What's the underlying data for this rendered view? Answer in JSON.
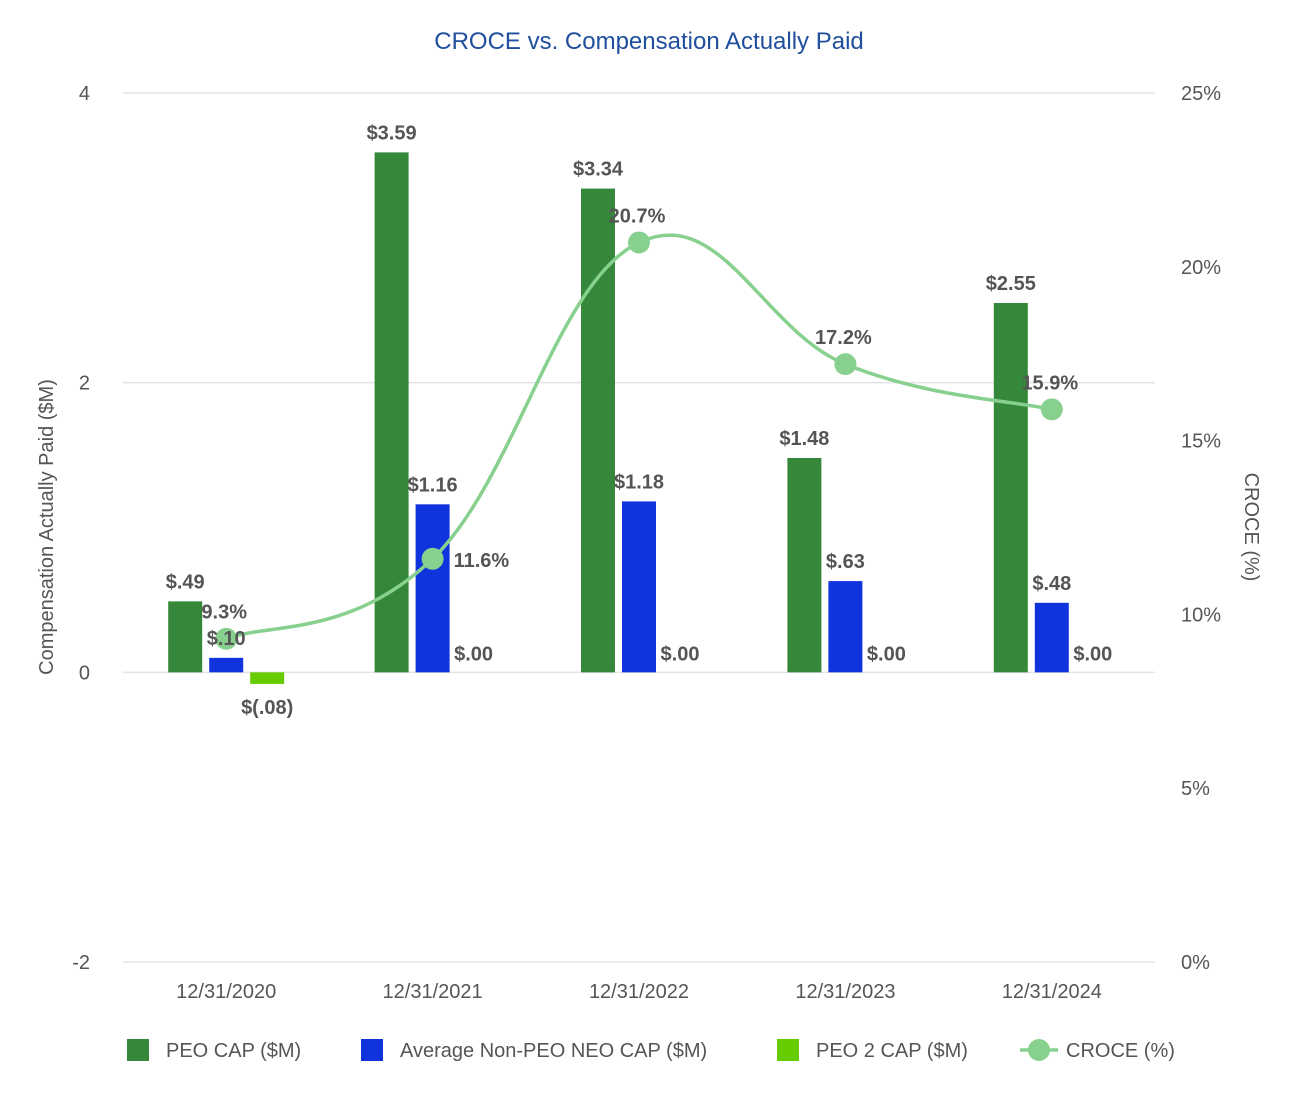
{
  "chart_data": {
    "type": "bar",
    "title": "CROCE vs. Compensation Actually Paid",
    "categories": [
      "12/31/2020",
      "12/31/2021",
      "12/31/2022",
      "12/31/2023",
      "12/31/2024"
    ],
    "ylabel": "Compensation Actually Paid ($M)",
    "y2label": "CROCE (%)",
    "ylim": [
      -2,
      4
    ],
    "yticks": [
      {
        "value": 4,
        "label": "4"
      },
      {
        "value": 2,
        "label": "2"
      },
      {
        "value": 0,
        "label": "0"
      },
      {
        "value": -2,
        "label": "-2"
      }
    ],
    "y2lim": [
      0,
      25
    ],
    "y2ticks": [
      {
        "value": 25,
        "label": "25%"
      },
      {
        "value": 20,
        "label": "20%"
      },
      {
        "value": 15,
        "label": "15%"
      },
      {
        "value": 10,
        "label": "10%"
      },
      {
        "value": 5,
        "label": "5%"
      },
      {
        "value": 0,
        "label": "0%"
      }
    ],
    "grid": true,
    "legend_position": "bottom",
    "series": [
      {
        "name": "PEO CAP ($M)",
        "type": "bar",
        "axis": "left",
        "color": "#35883a",
        "values": [
          0.49,
          3.59,
          3.34,
          1.48,
          2.55
        ],
        "labels": [
          "$.49",
          "$3.59",
          "$3.34",
          "$1.48",
          "$2.55"
        ]
      },
      {
        "name": "Average Non-PEO NEO CAP ($M)",
        "type": "bar",
        "axis": "left",
        "color": "#1133dd",
        "values": [
          0.1,
          1.16,
          1.18,
          0.63,
          0.48
        ],
        "labels": [
          "$.10",
          "$1.16",
          "$1.18",
          "$.63",
          "$.48"
        ]
      },
      {
        "name": "PEO 2 CAP ($M)",
        "type": "bar",
        "axis": "left",
        "color": "#66cc00",
        "values": [
          -0.08,
          0.0,
          0.0,
          0.0,
          0.0
        ],
        "labels": [
          "$(.08)",
          "$.00",
          "$.00",
          "$.00",
          "$.00"
        ]
      },
      {
        "name": "CROCE (%)",
        "type": "line",
        "axis": "right",
        "color": "#88d08e",
        "values": [
          9.3,
          11.6,
          20.7,
          17.2,
          15.9
        ],
        "labels": [
          "9.3%",
          "11.6%",
          "20.7%",
          "17.2%",
          "15.9%"
        ]
      }
    ]
  }
}
